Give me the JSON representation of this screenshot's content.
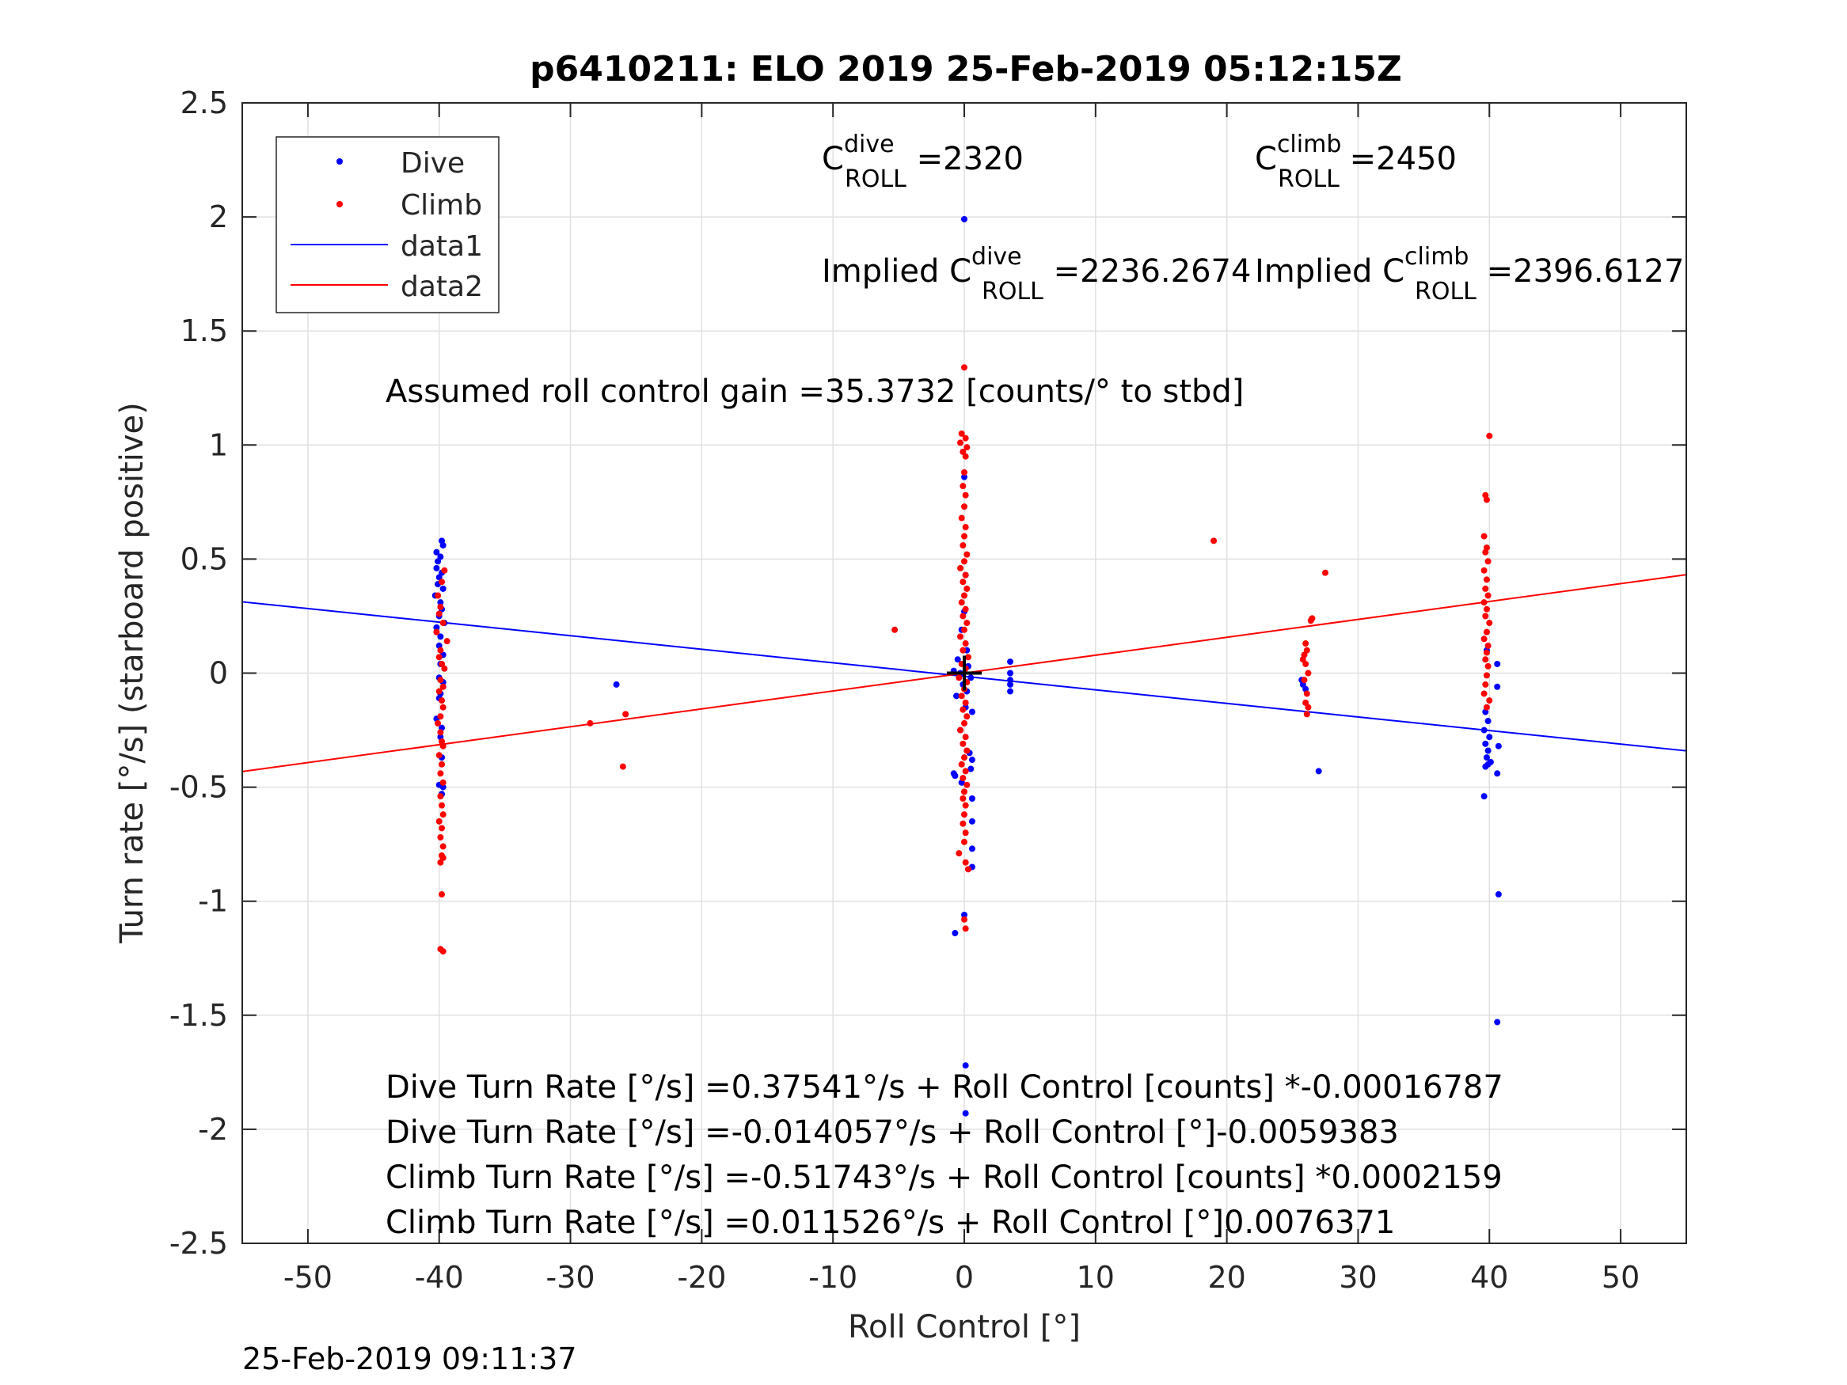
{
  "chart_data": {
    "type": "scatter",
    "title": "p6410211: ELO 2019 25-Feb-2019 05:12:15Z",
    "xlabel": "Roll Control [°]",
    "ylabel": "Turn rate [°/s] (starboard positive)",
    "xlim": [
      -55,
      55
    ],
    "ylim": [
      -2.5,
      2.5
    ],
    "xticks": [
      -50,
      -40,
      -30,
      -20,
      -10,
      0,
      10,
      20,
      30,
      40,
      50
    ],
    "xtick_labels": [
      "-50",
      "-40",
      "-30",
      "-20",
      "-10",
      "0",
      "10",
      "20",
      "30",
      "40",
      "50"
    ],
    "yticks": [
      -2.5,
      -2,
      -1.5,
      -1,
      -0.5,
      0,
      0.5,
      1,
      1.5,
      2,
      2.5
    ],
    "ytick_labels": [
      "-2.5",
      "-2",
      "-1.5",
      "-1",
      "-0.5",
      "0",
      "0.5",
      "1",
      "1.5",
      "2",
      "2.5"
    ],
    "grid": true,
    "legend_position": "top-left",
    "footer": "25-Feb-2019 09:11:37",
    "colors": {
      "dive": "#0000ff",
      "climb": "#ff0000",
      "axes": "#262626",
      "grid": "#e0e0e0",
      "marker": "#000000"
    },
    "series": [
      {
        "name": "Dive",
        "kind": "points",
        "color": "#0000ff",
        "points": [
          [
            -39.8,
            0.58
          ],
          [
            -39.7,
            0.56
          ],
          [
            -40.2,
            0.53
          ],
          [
            -39.9,
            0.51
          ],
          [
            -40.1,
            0.49
          ],
          [
            -40.2,
            0.46
          ],
          [
            -39.8,
            0.44
          ],
          [
            -40.0,
            0.42
          ],
          [
            -40.1,
            0.39
          ],
          [
            -39.7,
            0.37
          ],
          [
            -40.3,
            0.34
          ],
          [
            -39.9,
            0.31
          ],
          [
            -39.8,
            0.28
          ],
          [
            -40.0,
            0.25
          ],
          [
            -39.6,
            0.22
          ],
          [
            -40.2,
            0.2
          ],
          [
            -39.9,
            0.16
          ],
          [
            -40.0,
            0.12
          ],
          [
            -39.7,
            0.08
          ],
          [
            -39.9,
            0.04
          ],
          [
            -40.0,
            -0.02
          ],
          [
            -39.7,
            -0.04
          ],
          [
            -39.9,
            -0.09
          ],
          [
            -40.0,
            -0.11
          ],
          [
            -40.2,
            -0.2
          ],
          [
            -39.8,
            -0.24
          ],
          [
            -39.9,
            -0.28
          ],
          [
            -39.8,
            -0.37
          ],
          [
            -40.0,
            -0.49
          ],
          [
            -39.7,
            -0.5
          ],
          [
            -39.8,
            -0.53
          ],
          [
            -26.5,
            -0.05
          ],
          [
            0.0,
            1.99
          ],
          [
            0.0,
            0.86
          ],
          [
            0.1,
            0.43
          ],
          [
            0.0,
            0.27
          ],
          [
            -0.2,
            0.19
          ],
          [
            0.2,
            0.1
          ],
          [
            -0.5,
            0.06
          ],
          [
            0.3,
            0.03
          ],
          [
            -0.8,
            0.01
          ],
          [
            -0.3,
            0.0
          ],
          [
            0.5,
            -0.02
          ],
          [
            -0.1,
            -0.05
          ],
          [
            0.2,
            -0.08
          ],
          [
            -0.6,
            -0.1
          ],
          [
            0.1,
            -0.15
          ],
          [
            0.6,
            -0.17
          ],
          [
            -0.3,
            -0.25
          ],
          [
            0.4,
            -0.35
          ],
          [
            0.6,
            -0.38
          ],
          [
            0.5,
            -0.42
          ],
          [
            -0.8,
            -0.44
          ],
          [
            -0.7,
            -0.45
          ],
          [
            0.6,
            -0.55
          ],
          [
            0.6,
            -0.65
          ],
          [
            0.6,
            -0.77
          ],
          [
            0.6,
            -0.85
          ],
          [
            -0.2,
            -0.48
          ],
          [
            0.0,
            -1.06
          ],
          [
            -0.7,
            -1.14
          ],
          [
            0.1,
            -1.72
          ],
          [
            0.1,
            -1.93
          ],
          [
            3.5,
            0.05
          ],
          [
            3.5,
            0.0
          ],
          [
            3.5,
            -0.03
          ],
          [
            3.5,
            -0.05
          ],
          [
            3.5,
            -0.08
          ],
          [
            25.7,
            -0.03
          ],
          [
            25.8,
            -0.05
          ],
          [
            26.0,
            -0.07
          ],
          [
            27.0,
            -0.43
          ],
          [
            39.8,
            0.1
          ],
          [
            39.7,
            -0.17
          ],
          [
            39.9,
            -0.21
          ],
          [
            39.6,
            -0.25
          ],
          [
            40.0,
            -0.28
          ],
          [
            39.7,
            -0.31
          ],
          [
            39.9,
            -0.34
          ],
          [
            39.8,
            -0.37
          ],
          [
            40.1,
            -0.39
          ],
          [
            39.7,
            -0.41
          ],
          [
            39.9,
            -0.4
          ],
          [
            39.6,
            -0.54
          ],
          [
            40.6,
            0.04
          ],
          [
            40.6,
            -0.06
          ],
          [
            40.7,
            -0.32
          ],
          [
            40.6,
            -0.44
          ],
          [
            40.7,
            -0.97
          ],
          [
            40.6,
            -1.53
          ]
        ]
      },
      {
        "name": "Climb",
        "kind": "points",
        "color": "#ff0000",
        "points": [
          [
            -39.6,
            0.45
          ],
          [
            -39.8,
            0.4
          ],
          [
            -40.1,
            0.34
          ],
          [
            -39.9,
            0.29
          ],
          [
            -40.0,
            0.26
          ],
          [
            -39.7,
            0.22
          ],
          [
            -40.2,
            0.18
          ],
          [
            -39.4,
            0.14
          ],
          [
            -39.9,
            0.1
          ],
          [
            -40.0,
            0.07
          ],
          [
            -39.8,
            0.04
          ],
          [
            -39.6,
            0.02
          ],
          [
            -39.9,
            -0.03
          ],
          [
            -39.7,
            -0.06
          ],
          [
            -40.0,
            -0.08
          ],
          [
            -39.8,
            -0.12
          ],
          [
            -39.7,
            -0.15
          ],
          [
            -39.9,
            -0.19
          ],
          [
            -40.1,
            -0.22
          ],
          [
            -39.9,
            -0.26
          ],
          [
            -39.8,
            -0.3
          ],
          [
            -39.7,
            -0.32
          ],
          [
            -40.0,
            -0.36
          ],
          [
            -39.8,
            -0.4
          ],
          [
            -39.9,
            -0.44
          ],
          [
            -39.7,
            -0.48
          ],
          [
            -39.9,
            -0.54
          ],
          [
            -39.8,
            -0.58
          ],
          [
            -39.7,
            -0.62
          ],
          [
            -40.0,
            -0.65
          ],
          [
            -39.8,
            -0.68
          ],
          [
            -39.9,
            -0.72
          ],
          [
            -39.7,
            -0.76
          ],
          [
            -39.8,
            -0.8
          ],
          [
            -39.7,
            -0.81
          ],
          [
            -39.9,
            -0.83
          ],
          [
            -39.8,
            -0.97
          ],
          [
            -39.9,
            -1.21
          ],
          [
            -39.7,
            -1.22
          ],
          [
            -28.5,
            -0.22
          ],
          [
            -25.8,
            -0.18
          ],
          [
            -26.0,
            -0.41
          ],
          [
            -5.3,
            0.19
          ],
          [
            0.0,
            1.34
          ],
          [
            -0.2,
            1.05
          ],
          [
            0.1,
            1.03
          ],
          [
            -0.3,
            1.01
          ],
          [
            0.2,
            0.99
          ],
          [
            -0.1,
            0.97
          ],
          [
            0.1,
            0.95
          ],
          [
            0.0,
            0.88
          ],
          [
            -0.1,
            0.82
          ],
          [
            0.1,
            0.78
          ],
          [
            0.0,
            0.73
          ],
          [
            -0.2,
            0.68
          ],
          [
            0.1,
            0.64
          ],
          [
            0.0,
            0.6
          ],
          [
            -0.1,
            0.56
          ],
          [
            0.2,
            0.52
          ],
          [
            0.0,
            0.49
          ],
          [
            -0.3,
            0.46
          ],
          [
            0.1,
            0.43
          ],
          [
            -0.1,
            0.4
          ],
          [
            0.2,
            0.37
          ],
          [
            0.0,
            0.34
          ],
          [
            -0.2,
            0.31
          ],
          [
            0.1,
            0.28
          ],
          [
            -0.1,
            0.25
          ],
          [
            0.2,
            0.22
          ],
          [
            0.0,
            0.19
          ],
          [
            -0.3,
            0.16
          ],
          [
            0.1,
            0.13
          ],
          [
            -0.1,
            0.1
          ],
          [
            0.3,
            0.07
          ],
          [
            -0.2,
            0.04
          ],
          [
            0.1,
            0.02
          ],
          [
            -0.4,
            -0.02
          ],
          [
            0.2,
            -0.04
          ],
          [
            0.0,
            -0.07
          ],
          [
            -0.2,
            -0.1
          ],
          [
            0.1,
            -0.13
          ],
          [
            -0.1,
            -0.16
          ],
          [
            0.2,
            -0.19
          ],
          [
            0.0,
            -0.22
          ],
          [
            -0.3,
            -0.25
          ],
          [
            0.1,
            -0.28
          ],
          [
            -0.1,
            -0.31
          ],
          [
            0.2,
            -0.34
          ],
          [
            0.0,
            -0.37
          ],
          [
            -0.2,
            -0.4
          ],
          [
            0.1,
            -0.43
          ],
          [
            -0.1,
            -0.46
          ],
          [
            0.2,
            -0.49
          ],
          [
            0.0,
            -0.52
          ],
          [
            -0.1,
            -0.55
          ],
          [
            0.1,
            -0.58
          ],
          [
            0.0,
            -0.62
          ],
          [
            -0.1,
            -0.66
          ],
          [
            0.1,
            -0.7
          ],
          [
            0.0,
            -0.74
          ],
          [
            -0.4,
            -0.79
          ],
          [
            0.1,
            -0.83
          ],
          [
            0.3,
            -0.86
          ],
          [
            0.0,
            -1.08
          ],
          [
            0.1,
            -1.12
          ],
          [
            19.0,
            0.58
          ],
          [
            27.5,
            0.44
          ],
          [
            26.5,
            0.24
          ],
          [
            26.4,
            0.23
          ],
          [
            26.0,
            0.13
          ],
          [
            26.1,
            0.1
          ],
          [
            25.9,
            0.08
          ],
          [
            25.8,
            0.06
          ],
          [
            26.0,
            0.04
          ],
          [
            26.2,
            0.0
          ],
          [
            25.9,
            -0.03
          ],
          [
            26.1,
            -0.09
          ],
          [
            26.0,
            -0.13
          ],
          [
            26.2,
            -0.15
          ],
          [
            26.1,
            -0.18
          ],
          [
            40.0,
            1.04
          ],
          [
            39.7,
            0.78
          ],
          [
            39.8,
            0.76
          ],
          [
            39.6,
            0.6
          ],
          [
            39.8,
            0.55
          ],
          [
            39.7,
            0.53
          ],
          [
            39.9,
            0.49
          ],
          [
            39.6,
            0.45
          ],
          [
            39.8,
            0.41
          ],
          [
            39.7,
            0.37
          ],
          [
            39.9,
            0.34
          ],
          [
            39.6,
            0.31
          ],
          [
            39.8,
            0.28
          ],
          [
            39.7,
            0.25
          ],
          [
            40.0,
            0.22
          ],
          [
            39.8,
            0.18
          ],
          [
            39.6,
            0.15
          ],
          [
            39.9,
            0.12
          ],
          [
            39.8,
            0.09
          ],
          [
            39.7,
            0.06
          ],
          [
            39.9,
            0.03
          ],
          [
            39.8,
            -0.01
          ],
          [
            39.7,
            -0.05
          ],
          [
            39.6,
            -0.09
          ],
          [
            40.0,
            -0.12
          ],
          [
            39.8,
            -0.15
          ]
        ]
      },
      {
        "name": "data1",
        "kind": "line",
        "color": "#0000ff",
        "x": [
          -55,
          55
        ],
        "y": [
          0.3125,
          -0.3407
        ]
      },
      {
        "name": "data2",
        "kind": "line",
        "color": "#ff0000",
        "x": [
          -55,
          55
        ],
        "y": [
          -0.4315,
          0.4316
        ]
      }
    ],
    "marker": {
      "name": "origin-cross",
      "x": 0,
      "y": 0
    },
    "annotations": {
      "c_dive": {
        "base": "C",
        "sup": "dive",
        "sub": "ROLL",
        "value": " =2320"
      },
      "c_climb": {
        "base": "C",
        "sup": "climb",
        "sub": "ROLL",
        "value": " =2450"
      },
      "implied_dive": {
        "base": "Implied C",
        "sup": "dive",
        "sub": "ROLL",
        "value": " =2236.2674"
      },
      "implied_climb": {
        "base": "Implied C",
        "sup": "climb",
        "sub": "ROLL",
        "value": " =2396.6127"
      },
      "gain": "Assumed roll control gain =35.3732 [counts/° to stbd]",
      "eq_lines": [
        "Dive Turn Rate [°/s] =0.37541°/s + Roll Control [counts] *-0.00016787",
        "Dive Turn Rate [°/s] =-0.014057°/s + Roll Control [°]-0.0059383",
        "Climb Turn Rate [°/s] =-0.51743°/s + Roll Control [counts] *0.0002159",
        "Climb Turn Rate [°/s] =0.011526°/s + Roll Control [°]0.0076371"
      ]
    }
  }
}
